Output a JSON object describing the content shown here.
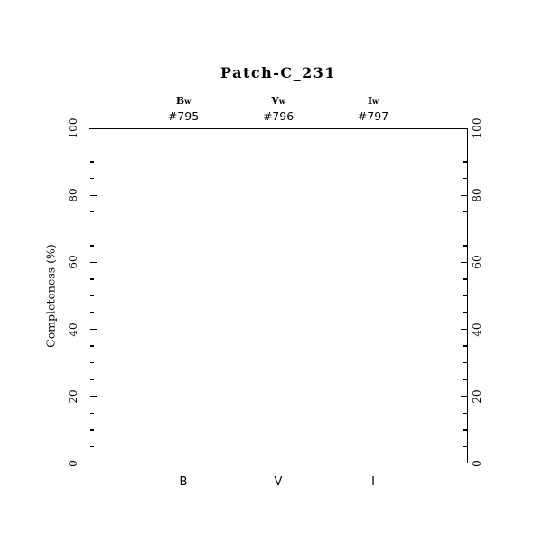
{
  "page": {
    "background_color": "#ffffff",
    "ink_color": "#000000"
  },
  "chart_data": {
    "type": "line",
    "title": "Patch-C_231",
    "xlabel": "",
    "ylabel": "Completeness (%)",
    "ylim": [
      0,
      100
    ],
    "yticks": [
      0,
      20,
      40,
      60,
      80,
      100
    ],
    "minor_tick_step": 5,
    "grid": false,
    "legend": null,
    "x_axis": {
      "categories": [
        "B",
        "V",
        "I"
      ],
      "positions": [
        0.25,
        0.5,
        0.75
      ]
    },
    "top_axis": {
      "bands": [
        {
          "band": "B",
          "sub": "w",
          "id": "#795"
        },
        {
          "band": "V",
          "sub": "w",
          "id": "#796"
        },
        {
          "band": "I",
          "sub": "w",
          "id": "#797"
        }
      ]
    },
    "series": []
  }
}
